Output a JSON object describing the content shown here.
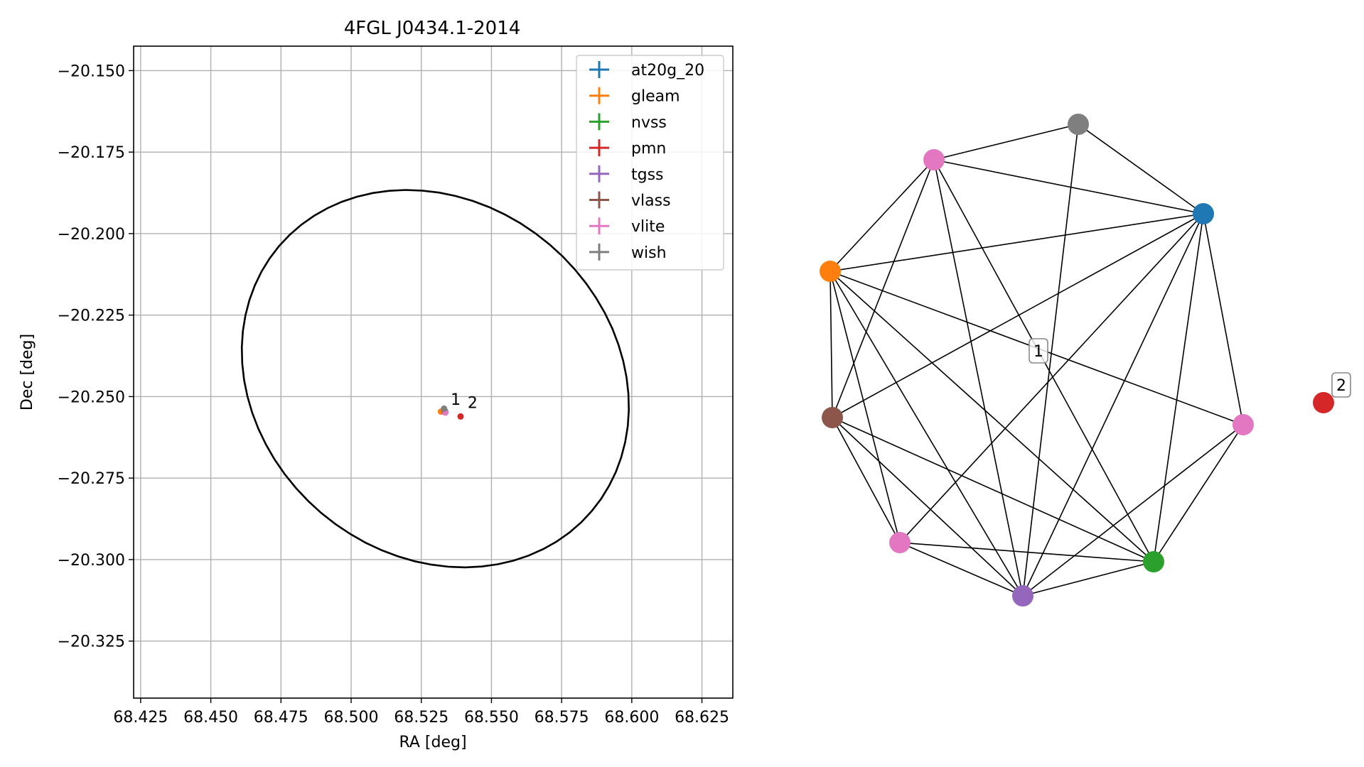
{
  "chart_data": [
    {
      "type": "scatter",
      "title": "4FGL J0434.1-2014",
      "xlabel": "RA [deg]",
      "ylabel": "Dec [deg]",
      "xlim": [
        68.4225,
        68.636
      ],
      "ylim": [
        -20.3425,
        -20.1425
      ],
      "xticks": [
        "68.425",
        "68.450",
        "68.475",
        "68.500",
        "68.525",
        "68.550",
        "68.575",
        "68.600",
        "68.625"
      ],
      "yticks": [
        "−20.150",
        "−20.175",
        "−20.200",
        "−20.225",
        "−20.250",
        "−20.275",
        "−20.300",
        "−20.325"
      ],
      "xtick_values": [
        68.425,
        68.45,
        68.475,
        68.5,
        68.525,
        68.55,
        68.575,
        68.6,
        68.625
      ],
      "ytick_values": [
        -20.15,
        -20.175,
        -20.2,
        -20.225,
        -20.25,
        -20.275,
        -20.3,
        -20.325
      ],
      "grid": true,
      "legend_position": "top-right",
      "ellipse": {
        "center": [
          68.53,
          -20.2445
        ],
        "semi_axes": [
          0.0705,
          0.056
        ],
        "angle_deg": -20,
        "color": "#000000"
      },
      "series": [
        {
          "name": "at20g_20",
          "color": "#1f77b4",
          "points": [
            [
              68.5335,
              -20.2545
            ]
          ]
        },
        {
          "name": "gleam",
          "color": "#ff7f0e",
          "points": [
            [
              68.532,
              -20.2546
            ]
          ]
        },
        {
          "name": "nvss",
          "color": "#2ca02c",
          "points": [
            [
              68.5333,
              -20.2547
            ]
          ]
        },
        {
          "name": "pmn",
          "color": "#d62728",
          "points": [
            [
              68.539,
              -20.2561
            ]
          ]
        },
        {
          "name": "tgss",
          "color": "#9467bd",
          "points": [
            [
              68.5334,
              -20.2548
            ]
          ]
        },
        {
          "name": "vlass",
          "color": "#8c564b",
          "points": [
            [
              68.5333,
              -20.2546
            ]
          ]
        },
        {
          "name": "vlite",
          "color": "#e377c2",
          "points": [
            [
              68.5336,
              -20.2549
            ]
          ]
        },
        {
          "name": "wish",
          "color": "#7f7f7f",
          "points": [
            [
              68.5331,
              -20.2537
            ]
          ]
        }
      ],
      "annotations": [
        {
          "text": "1",
          "at": [
            68.5355,
            -20.2525
          ]
        },
        {
          "text": "2",
          "at": [
            68.5415,
            -20.2535
          ]
        }
      ]
    },
    {
      "type": "network",
      "nodes": [
        {
          "id": "n_blue",
          "color": "#1f77b4"
        },
        {
          "id": "n_gray",
          "color": "#7f7f7f"
        },
        {
          "id": "n_pink_top",
          "color": "#e377c2"
        },
        {
          "id": "n_orange",
          "color": "#ff7f0e"
        },
        {
          "id": "n_brown",
          "color": "#8c564b"
        },
        {
          "id": "n_pink_bottom",
          "color": "#e377c2"
        },
        {
          "id": "n_purple",
          "color": "#9467bd"
        },
        {
          "id": "n_green",
          "color": "#2ca02c"
        },
        {
          "id": "n_pink_right",
          "color": "#e377c2"
        },
        {
          "id": "n_red",
          "color": "#d62728"
        }
      ],
      "edges": [
        [
          "n_gray",
          "n_pink_top"
        ],
        [
          "n_gray",
          "n_blue"
        ],
        [
          "n_gray",
          "n_purple"
        ],
        [
          "n_pink_top",
          "n_blue"
        ],
        [
          "n_pink_top",
          "n_orange"
        ],
        [
          "n_pink_top",
          "n_brown"
        ],
        [
          "n_pink_top",
          "n_purple"
        ],
        [
          "n_pink_top",
          "n_green"
        ],
        [
          "n_blue",
          "n_orange"
        ],
        [
          "n_blue",
          "n_brown"
        ],
        [
          "n_blue",
          "n_pink_bottom"
        ],
        [
          "n_blue",
          "n_purple"
        ],
        [
          "n_blue",
          "n_green"
        ],
        [
          "n_blue",
          "n_pink_right"
        ],
        [
          "n_orange",
          "n_brown"
        ],
        [
          "n_orange",
          "n_pink_bottom"
        ],
        [
          "n_orange",
          "n_purple"
        ],
        [
          "n_orange",
          "n_green"
        ],
        [
          "n_orange",
          "n_pink_right"
        ],
        [
          "n_brown",
          "n_pink_bottom"
        ],
        [
          "n_brown",
          "n_purple"
        ],
        [
          "n_brown",
          "n_green"
        ],
        [
          "n_pink_bottom",
          "n_purple"
        ],
        [
          "n_pink_bottom",
          "n_green"
        ],
        [
          "n_purple",
          "n_green"
        ],
        [
          "n_purple",
          "n_pink_right"
        ],
        [
          "n_green",
          "n_pink_right"
        ]
      ],
      "group_labels": [
        {
          "text": "1"
        },
        {
          "text": "2"
        }
      ]
    }
  ]
}
